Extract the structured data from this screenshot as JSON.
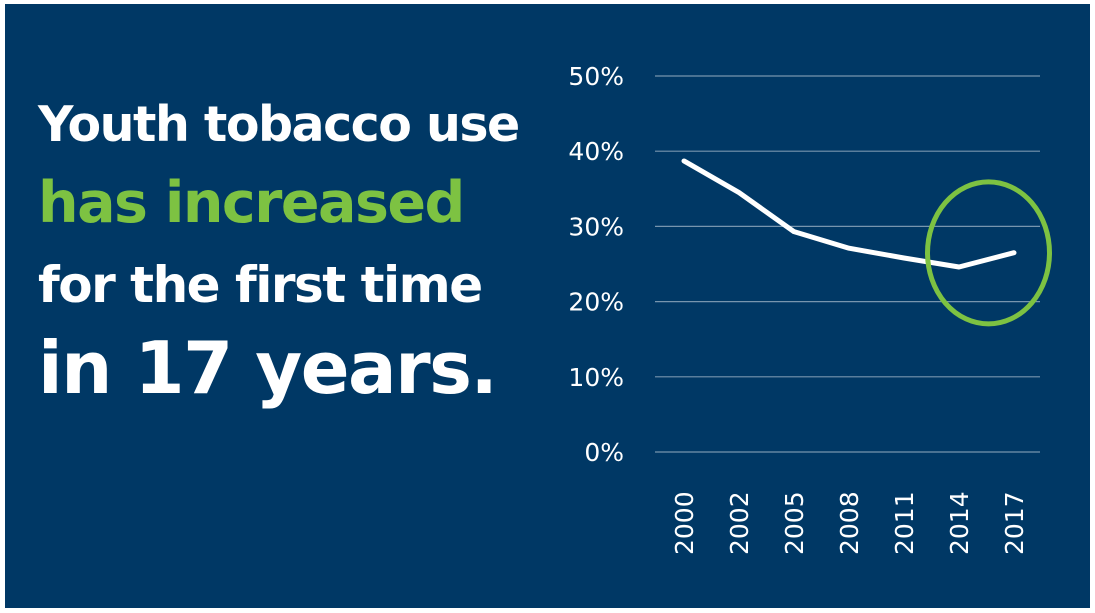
{
  "headline": {
    "line1": "Youth tobacco use",
    "line2": "has increased",
    "line3": "for the first time",
    "line4": "in 17 years."
  },
  "colors": {
    "background": "#003865",
    "text": "#ffffff",
    "accent": "#7dc242",
    "gridline": "#9fb4c7"
  },
  "chart_data": {
    "type": "line",
    "title": "",
    "xlabel": "",
    "ylabel": "",
    "categories": [
      "2000",
      "2002",
      "2005",
      "2008",
      "2011",
      "2014",
      "2017"
    ],
    "values": [
      38.7,
      34.5,
      29.3,
      27.1,
      25.8,
      24.6,
      26.5
    ],
    "y_ticks": [
      "0%",
      "10%",
      "20%",
      "30%",
      "40%",
      "50%"
    ],
    "y_tick_values": [
      0,
      10,
      20,
      30,
      40,
      50
    ],
    "ylim": [
      0,
      50
    ],
    "grid": true,
    "line_color": "#ffffff",
    "highlight": {
      "shape": "circle",
      "color": "#7dc242",
      "around_categories": [
        "2014",
        "2017"
      ]
    }
  }
}
